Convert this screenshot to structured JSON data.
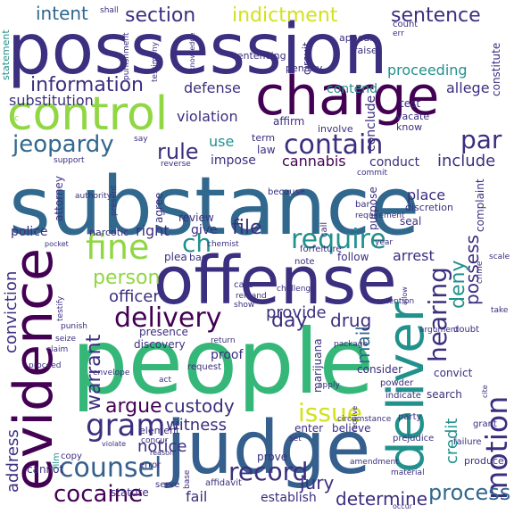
{
  "palette": {
    "background": "#ffffff",
    "dark_purple": "#440154",
    "indigo": "#3b2f7f",
    "navy": "#31688e",
    "blue": "#355f8d",
    "teal": "#21918c",
    "green": "#35b779",
    "lime": "#90d743",
    "yellow": "#d2e21b"
  },
  "words": [
    {
      "id": "possession",
      "text": "possession"
    },
    {
      "id": "people",
      "text": "people"
    },
    {
      "id": "substance",
      "text": "substance"
    },
    {
      "id": "offense",
      "text": "offense"
    },
    {
      "id": "judge",
      "text": "judge"
    },
    {
      "id": "charge",
      "text": "charge"
    },
    {
      "id": "control",
      "text": "control"
    },
    {
      "id": "evidence",
      "text": "evidence"
    },
    {
      "id": "motion",
      "text": "motion"
    },
    {
      "id": "deliver",
      "text": "deliver"
    },
    {
      "id": "delivery",
      "text": "delivery"
    },
    {
      "id": "counsel",
      "text": "counsel"
    },
    {
      "id": "contain",
      "text": "contain"
    },
    {
      "id": "fine",
      "text": "fine"
    },
    {
      "id": "require",
      "text": "require"
    },
    {
      "id": "information",
      "text": "information"
    },
    {
      "id": "section",
      "text": "section"
    },
    {
      "id": "indictment",
      "text": "indictment"
    },
    {
      "id": "sentence",
      "text": "sentence"
    },
    {
      "id": "intent",
      "text": "intent"
    },
    {
      "id": "jeopardy",
      "text": "jeopardy"
    },
    {
      "id": "issue",
      "text": "issue"
    },
    {
      "id": "gram",
      "text": "gram"
    },
    {
      "id": "cocaine",
      "text": "cocaine"
    },
    {
      "id": "record",
      "text": "record"
    },
    {
      "id": "hearing",
      "text": "hearing"
    },
    {
      "id": "process",
      "text": "process"
    },
    {
      "id": "par",
      "text": "par"
    },
    {
      "id": "rule",
      "text": "rule"
    },
    {
      "id": "ch",
      "text": "ch"
    },
    {
      "id": "warrant",
      "text": "warrant"
    },
    {
      "id": "argue",
      "text": "argue"
    },
    {
      "id": "custody",
      "text": "custody"
    },
    {
      "id": "day",
      "text": "day"
    },
    {
      "id": "person",
      "text": "person"
    },
    {
      "id": "file",
      "text": "file"
    },
    {
      "id": "deny",
      "text": "deny"
    },
    {
      "id": "possess",
      "text": "possess"
    },
    {
      "id": "mail",
      "text": "mail"
    },
    {
      "id": "credit",
      "text": "credit"
    },
    {
      "id": "witness",
      "text": "witness"
    },
    {
      "id": "jury",
      "text": "jury"
    },
    {
      "id": "determine",
      "text": "determine"
    },
    {
      "id": "notice",
      "text": "notice"
    },
    {
      "id": "drug",
      "text": "drug"
    },
    {
      "id": "provide",
      "text": "provide"
    },
    {
      "id": "officer",
      "text": "officer"
    },
    {
      "id": "conviction",
      "text": "conviction"
    },
    {
      "id": "address",
      "text": "address"
    },
    {
      "id": "defense",
      "text": "defense"
    },
    {
      "id": "substitution",
      "text": "substitution"
    },
    {
      "id": "violation",
      "text": "violation"
    },
    {
      "id": "proceeding",
      "text": "proceeding"
    },
    {
      "id": "allege",
      "text": "allege"
    },
    {
      "id": "contend",
      "text": "contend"
    },
    {
      "id": "conclude",
      "text": "conclude"
    },
    {
      "id": "include",
      "text": "include"
    },
    {
      "id": "conduct",
      "text": "conduct"
    },
    {
      "id": "cannabis",
      "text": "cannabis"
    },
    {
      "id": "impose",
      "text": "impose"
    },
    {
      "id": "use",
      "text": "use"
    },
    {
      "id": "law",
      "text": "law"
    },
    {
      "id": "police",
      "text": "police"
    },
    {
      "id": "right",
      "text": "right"
    },
    {
      "id": "give",
      "text": "give"
    },
    {
      "id": "arrest",
      "text": "arrest"
    },
    {
      "id": "follow",
      "text": "follow"
    },
    {
      "id": "place",
      "text": "place"
    },
    {
      "id": "establish",
      "text": "establish"
    },
    {
      "id": "fail",
      "text": "fail"
    },
    {
      "id": "statute",
      "text": "statute"
    },
    {
      "id": "prove",
      "text": "prove"
    },
    {
      "id": "presence",
      "text": "presence"
    },
    {
      "id": "discovery",
      "text": "discovery"
    },
    {
      "id": "proof",
      "text": "proof"
    },
    {
      "id": "consider",
      "text": "consider"
    },
    {
      "id": "search",
      "text": "search"
    },
    {
      "id": "convict",
      "text": "convict"
    },
    {
      "id": "enter",
      "text": "enter"
    },
    {
      "id": "believe",
      "text": "believe"
    },
    {
      "id": "marijuana",
      "text": "marijuana"
    },
    {
      "id": "circuit",
      "text": "circuit"
    },
    {
      "id": "test",
      "text": "test"
    },
    {
      "id": "affirm",
      "text": "affirm"
    },
    {
      "id": "vacate",
      "text": "vacate"
    },
    {
      "id": "know",
      "text": "know"
    },
    {
      "id": "constitute",
      "text": "constitute"
    },
    {
      "id": "sentencing",
      "text": "sentencing"
    },
    {
      "id": "penalty",
      "text": "penalty"
    },
    {
      "id": "raise",
      "text": "raise"
    },
    {
      "id": "appear",
      "text": "appear"
    },
    {
      "id": "count",
      "text": "count"
    },
    {
      "id": "err",
      "text": "err"
    },
    {
      "id": "shall",
      "text": "shall"
    },
    {
      "id": "punishment",
      "text": "punishment"
    },
    {
      "id": "testimony",
      "text": "testimony"
    },
    {
      "id": "knowledge",
      "text": "knowledge"
    },
    {
      "id": "prosecution",
      "text": "prosecution"
    },
    {
      "id": "statement",
      "text": "statement"
    },
    {
      "id": "involve",
      "text": "involve"
    },
    {
      "id": "term",
      "text": "term"
    },
    {
      "id": "commit",
      "text": "commit"
    },
    {
      "id": "say",
      "text": "say"
    },
    {
      "id": "reverse",
      "text": "reverse"
    },
    {
      "id": "support",
      "text": "support"
    },
    {
      "id": "attorney",
      "text": "attorney"
    },
    {
      "id": "authority",
      "text": "authority"
    },
    {
      "id": "present",
      "text": "present"
    },
    {
      "id": "agree",
      "text": "agree"
    },
    {
      "id": "review",
      "text": "review"
    },
    {
      "id": "because",
      "text": "because"
    },
    {
      "id": "call",
      "text": "call"
    },
    {
      "id": "bar",
      "text": "bar"
    },
    {
      "id": "requirement",
      "text": "requirement"
    },
    {
      "id": "purpose",
      "text": "purpose"
    },
    {
      "id": "seal",
      "text": "seal"
    },
    {
      "id": "discretion",
      "text": "discretion"
    },
    {
      "id": "complaint",
      "text": "complaint"
    },
    {
      "id": "crime",
      "text": "crime"
    },
    {
      "id": "scale",
      "text": "scale"
    },
    {
      "id": "narcotic",
      "text": "narcotic"
    },
    {
      "id": "pocket",
      "text": "pocket"
    },
    {
      "id": "chemist",
      "text": "chemist"
    },
    {
      "id": "year",
      "text": "year"
    },
    {
      "id": "forfeiture",
      "text": "forfeiture"
    },
    {
      "id": "note",
      "text": "note"
    },
    {
      "id": "plea",
      "text": "plea"
    },
    {
      "id": "bag",
      "text": "bag"
    },
    {
      "id": "cate",
      "text": "cate"
    },
    {
      "id": "remand",
      "text": "remand"
    },
    {
      "id": "show",
      "text": "show"
    },
    {
      "id": "challenge",
      "text": "challenge"
    },
    {
      "id": "contention",
      "text": "contention"
    },
    {
      "id": "allow",
      "text": "allow"
    },
    {
      "id": "take",
      "text": "take"
    },
    {
      "id": "doubt",
      "text": "doubt"
    },
    {
      "id": "argument",
      "text": "argument"
    },
    {
      "id": "testify",
      "text": "testify"
    },
    {
      "id": "punish",
      "text": "punish"
    },
    {
      "id": "seize",
      "text": "seize"
    },
    {
      "id": "claim",
      "text": "claim"
    },
    {
      "id": "proceed",
      "text": "proceed"
    },
    {
      "id": "return",
      "text": "return"
    },
    {
      "id": "request",
      "text": "request"
    },
    {
      "id": "act",
      "text": "act"
    },
    {
      "id": "apply",
      "text": "apply"
    },
    {
      "id": "package",
      "text": "package"
    },
    {
      "id": "powder",
      "text": "powder"
    },
    {
      "id": "indicate",
      "text": "indicate"
    },
    {
      "id": "cite",
      "text": "cite"
    },
    {
      "id": "party",
      "text": "party"
    },
    {
      "id": "grant",
      "text": "grant"
    },
    {
      "id": "prejudice",
      "text": "prejudice"
    },
    {
      "id": "failure",
      "text": "failure"
    },
    {
      "id": "produce",
      "text": "produce"
    },
    {
      "id": "occur",
      "text": "occur"
    },
    {
      "id": "material",
      "text": "material"
    },
    {
      "id": "amendment",
      "text": "amendment"
    },
    {
      "id": "receive",
      "text": "receive"
    },
    {
      "id": "circumstance",
      "text": "circumstance"
    },
    {
      "id": "affidavit",
      "text": "affidavit"
    },
    {
      "id": "base",
      "text": "base"
    },
    {
      "id": "serve",
      "text": "serve"
    },
    {
      "id": "error",
      "text": "error"
    },
    {
      "id": "concur",
      "text": "concur"
    },
    {
      "id": "reason",
      "text": "reason"
    },
    {
      "id": "element",
      "text": "element"
    },
    {
      "id": "violate",
      "text": "violate"
    },
    {
      "id": "set",
      "text": "set"
    },
    {
      "id": "envelope",
      "text": "envelope"
    },
    {
      "id": "ask",
      "text": "ask"
    },
    {
      "id": "film",
      "text": "film"
    },
    {
      "id": "copy",
      "text": "copy"
    },
    {
      "id": "cannot",
      "text": "cannot"
    },
    {
      "id": "party-c",
      "text": "c"
    }
  ]
}
